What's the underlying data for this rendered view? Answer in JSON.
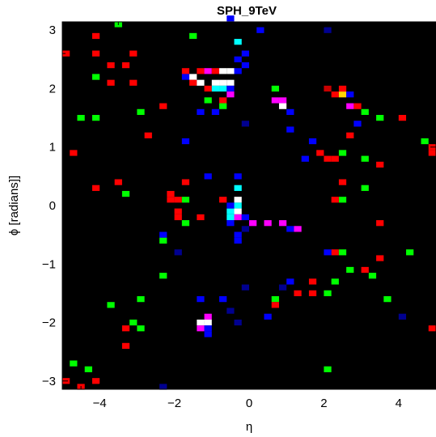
{
  "chart_data": {
    "type": "heatmap",
    "title": "SPH_9TeV",
    "xlabel": "η",
    "ylabel": "ϕ [radians]]",
    "xlim": [
      -5,
      5
    ],
    "ylim": [
      -3.14159,
      3.14159
    ],
    "xticks": [
      -4,
      -2,
      0,
      2,
      4
    ],
    "xtick_labels": [
      "−4",
      "−2",
      "0",
      "2",
      "4"
    ],
    "yticks": [
      -3,
      -2,
      -1,
      0,
      1,
      2,
      3
    ],
    "ytick_labels": [
      "−3",
      "−2",
      "−1",
      "0",
      "1",
      "2",
      "3"
    ],
    "background": "#000000",
    "cell_size": [
      0.2,
      0.1
    ],
    "colors": {
      "r": "#ff0000",
      "dr": "#c80000",
      "g": "#00ff00",
      "b": "#0000ff",
      "db": "#000090",
      "c": "#00ffff",
      "w": "#ffffff",
      "m": "#ff00ff",
      "y": "#ffd700",
      "mr": "#b40000",
      "o": "#ff8c00"
    },
    "cells": [
      [
        -4.9,
        -3.0,
        "r"
      ],
      [
        -4.7,
        -2.7,
        "g"
      ],
      [
        -4.5,
        -3.1,
        "r"
      ],
      [
        -4.3,
        -2.8,
        "g"
      ],
      [
        -4.1,
        -3.0,
        "r"
      ],
      [
        -4.9,
        2.6,
        "r"
      ],
      [
        -4.1,
        2.9,
        "r"
      ],
      [
        -4.1,
        2.6,
        "r"
      ],
      [
        -4.1,
        2.2,
        "g"
      ],
      [
        -3.7,
        2.4,
        "r"
      ],
      [
        -3.7,
        2.1,
        "r"
      ],
      [
        -3.3,
        2.4,
        "r"
      ],
      [
        -3.5,
        3.1,
        "g"
      ],
      [
        -3.1,
        2.6,
        "r"
      ],
      [
        -3.1,
        2.1,
        "r"
      ],
      [
        -4.5,
        1.5,
        "g"
      ],
      [
        -4.1,
        1.5,
        "g"
      ],
      [
        -4.7,
        0.9,
        "r"
      ],
      [
        -2.9,
        1.6,
        "g"
      ],
      [
        -2.7,
        1.2,
        "r"
      ],
      [
        -2.3,
        1.7,
        "r"
      ],
      [
        -3.5,
        0.4,
        "r"
      ],
      [
        -3.3,
        0.2,
        "g"
      ],
      [
        -4.1,
        0.3,
        "r"
      ],
      [
        -1.5,
        2.9,
        "g"
      ],
      [
        -1.7,
        2.3,
        "r"
      ],
      [
        -1.7,
        2.2,
        "b"
      ],
      [
        -1.5,
        2.2,
        "w"
      ],
      [
        -1.5,
        2.1,
        "r"
      ],
      [
        -1.3,
        2.3,
        "r"
      ],
      [
        -1.3,
        2.1,
        "w"
      ],
      [
        -1.1,
        2.3,
        "m"
      ],
      [
        -1.1,
        2.0,
        "r"
      ],
      [
        -0.9,
        2.3,
        "r"
      ],
      [
        -0.9,
        2.1,
        "w"
      ],
      [
        -0.9,
        2.0,
        "c"
      ],
      [
        -0.7,
        2.3,
        "w"
      ],
      [
        -0.7,
        2.1,
        "w"
      ],
      [
        -0.7,
        2.0,
        "c"
      ],
      [
        -0.5,
        2.3,
        "w"
      ],
      [
        -0.5,
        2.1,
        "w"
      ],
      [
        -0.5,
        2.0,
        "b"
      ],
      [
        -0.5,
        1.9,
        "m"
      ],
      [
        -0.7,
        1.8,
        "r"
      ],
      [
        -1.1,
        1.8,
        "g"
      ],
      [
        -0.7,
        1.7,
        "g"
      ],
      [
        -0.9,
        1.6,
        "b"
      ],
      [
        -1.3,
        1.6,
        "b"
      ],
      [
        -1.7,
        1.1,
        "b"
      ],
      [
        -1.1,
        0.5,
        "b"
      ],
      [
        -0.3,
        2.8,
        "c"
      ],
      [
        -0.1,
        2.6,
        "b"
      ],
      [
        -0.1,
        2.4,
        "b"
      ],
      [
        -0.3,
        2.5,
        "b"
      ],
      [
        -0.5,
        3.2,
        "b"
      ],
      [
        0.3,
        3.0,
        "b"
      ],
      [
        -0.3,
        2.3,
        "b"
      ],
      [
        -0.1,
        1.4,
        "db"
      ],
      [
        0.7,
        2.0,
        "g"
      ],
      [
        0.7,
        1.8,
        "m"
      ],
      [
        0.9,
        1.8,
        "m"
      ],
      [
        0.9,
        1.7,
        "w"
      ],
      [
        1.1,
        1.6,
        "b"
      ],
      [
        1.1,
        1.3,
        "b"
      ],
      [
        2.3,
        1.9,
        "r"
      ],
      [
        2.1,
        2.0,
        "dr"
      ],
      [
        2.5,
        1.9,
        "y"
      ],
      [
        2.7,
        1.9,
        "b"
      ],
      [
        2.5,
        2.0,
        "r"
      ],
      [
        2.7,
        1.7,
        "m"
      ],
      [
        2.9,
        1.7,
        "r"
      ],
      [
        3.1,
        1.6,
        "g"
      ],
      [
        3.5,
        1.5,
        "g"
      ],
      [
        4.1,
        1.5,
        "r"
      ],
      [
        4.7,
        1.1,
        "g"
      ],
      [
        4.9,
        1.0,
        "r"
      ],
      [
        4.9,
        0.9,
        "r"
      ],
      [
        2.7,
        1.2,
        "r"
      ],
      [
        2.5,
        0.9,
        "g"
      ],
      [
        3.1,
        0.8,
        "g"
      ],
      [
        1.9,
        0.9,
        "r"
      ],
      [
        2.1,
        0.8,
        "r"
      ],
      [
        2.3,
        0.8,
        "r"
      ],
      [
        3.5,
        0.7,
        "r"
      ],
      [
        2.5,
        0.4,
        "r"
      ],
      [
        3.1,
        0.3,
        "g"
      ],
      [
        2.5,
        0.1,
        "g"
      ],
      [
        2.3,
        0.1,
        "r"
      ],
      [
        1.5,
        0.8,
        "b"
      ],
      [
        1.7,
        1.1,
        "b"
      ],
      [
        2.9,
        1.4,
        "b"
      ],
      [
        2.1,
        3.0,
        "db"
      ],
      [
        -0.3,
        0.5,
        "b"
      ],
      [
        -0.3,
        0.3,
        "c"
      ],
      [
        -0.3,
        0.1,
        "w"
      ],
      [
        -0.3,
        0.0,
        "c"
      ],
      [
        -0.3,
        -0.1,
        "w"
      ],
      [
        -0.5,
        -0.1,
        "c"
      ],
      [
        -0.5,
        -0.2,
        "c"
      ],
      [
        -0.3,
        -0.2,
        "m"
      ],
      [
        -0.5,
        0.0,
        "b"
      ],
      [
        -0.5,
        -0.3,
        "b"
      ],
      [
        -0.1,
        -0.2,
        "b"
      ],
      [
        0.1,
        -0.3,
        "m"
      ],
      [
        0.5,
        -0.3,
        "m"
      ],
      [
        0.9,
        -0.3,
        "m"
      ],
      [
        1.1,
        -0.4,
        "b"
      ],
      [
        1.3,
        -0.4,
        "m"
      ],
      [
        -0.3,
        -0.5,
        "b"
      ],
      [
        -0.3,
        -0.6,
        "b"
      ],
      [
        -0.7,
        0.1,
        "r"
      ],
      [
        -0.1,
        -0.4,
        "db"
      ],
      [
        -1.7,
        0.4,
        "r"
      ],
      [
        -2.1,
        0.2,
        "r"
      ],
      [
        -2.1,
        0.1,
        "r"
      ],
      [
        -1.9,
        0.1,
        "r"
      ],
      [
        -1.7,
        0.1,
        "g"
      ],
      [
        -1.9,
        -0.1,
        "r"
      ],
      [
        -1.9,
        -0.2,
        "r"
      ],
      [
        -1.7,
        -0.3,
        "g"
      ],
      [
        -1.3,
        -0.2,
        "r"
      ],
      [
        -2.3,
        -0.5,
        "b"
      ],
      [
        -2.3,
        -0.6,
        "g"
      ],
      [
        -2.3,
        -1.2,
        "g"
      ],
      [
        -1.9,
        -0.8,
        "db"
      ],
      [
        -3.7,
        -1.7,
        "g"
      ],
      [
        -2.9,
        -1.6,
        "g"
      ],
      [
        -3.1,
        -2.0,
        "g"
      ],
      [
        -3.3,
        -2.1,
        "r"
      ],
      [
        -2.9,
        -2.1,
        "g"
      ],
      [
        -3.3,
        -2.4,
        "r"
      ],
      [
        -1.3,
        -1.6,
        "b"
      ],
      [
        -0.7,
        -1.6,
        "b"
      ],
      [
        -1.1,
        -1.9,
        "m"
      ],
      [
        -1.3,
        -2.0,
        "w"
      ],
      [
        -1.1,
        -2.0,
        "w"
      ],
      [
        -1.3,
        -2.1,
        "m"
      ],
      [
        -1.1,
        -2.1,
        "b"
      ],
      [
        -1.1,
        -2.2,
        "b"
      ],
      [
        -0.5,
        -1.8,
        "db"
      ],
      [
        -0.3,
        -2.0,
        "db"
      ],
      [
        -0.1,
        -1.4,
        "db"
      ],
      [
        -2.3,
        -3.1,
        "db"
      ],
      [
        0.7,
        -1.6,
        "g"
      ],
      [
        0.7,
        -1.7,
        "r"
      ],
      [
        0.5,
        -1.9,
        "b"
      ],
      [
        0.9,
        -1.4,
        "db"
      ],
      [
        1.1,
        -1.3,
        "b"
      ],
      [
        1.3,
        -1.5,
        "r"
      ],
      [
        1.7,
        -1.3,
        "r"
      ],
      [
        1.7,
        -1.5,
        "r"
      ],
      [
        2.1,
        -1.5,
        "g"
      ],
      [
        2.3,
        -1.3,
        "g"
      ],
      [
        2.3,
        -0.8,
        "r"
      ],
      [
        2.5,
        -0.8,
        "g"
      ],
      [
        2.7,
        -1.1,
        "g"
      ],
      [
        3.1,
        -1.1,
        "r"
      ],
      [
        3.3,
        -1.2,
        "g"
      ],
      [
        3.5,
        -0.9,
        "r"
      ],
      [
        3.5,
        -0.3,
        "r"
      ],
      [
        3.7,
        -1.6,
        "g"
      ],
      [
        4.3,
        -0.8,
        "g"
      ],
      [
        4.9,
        -2.1,
        "r"
      ],
      [
        2.1,
        -0.8,
        "b"
      ],
      [
        2.1,
        -2.8,
        "g"
      ],
      [
        4.1,
        -1.9,
        "db"
      ]
    ]
  }
}
